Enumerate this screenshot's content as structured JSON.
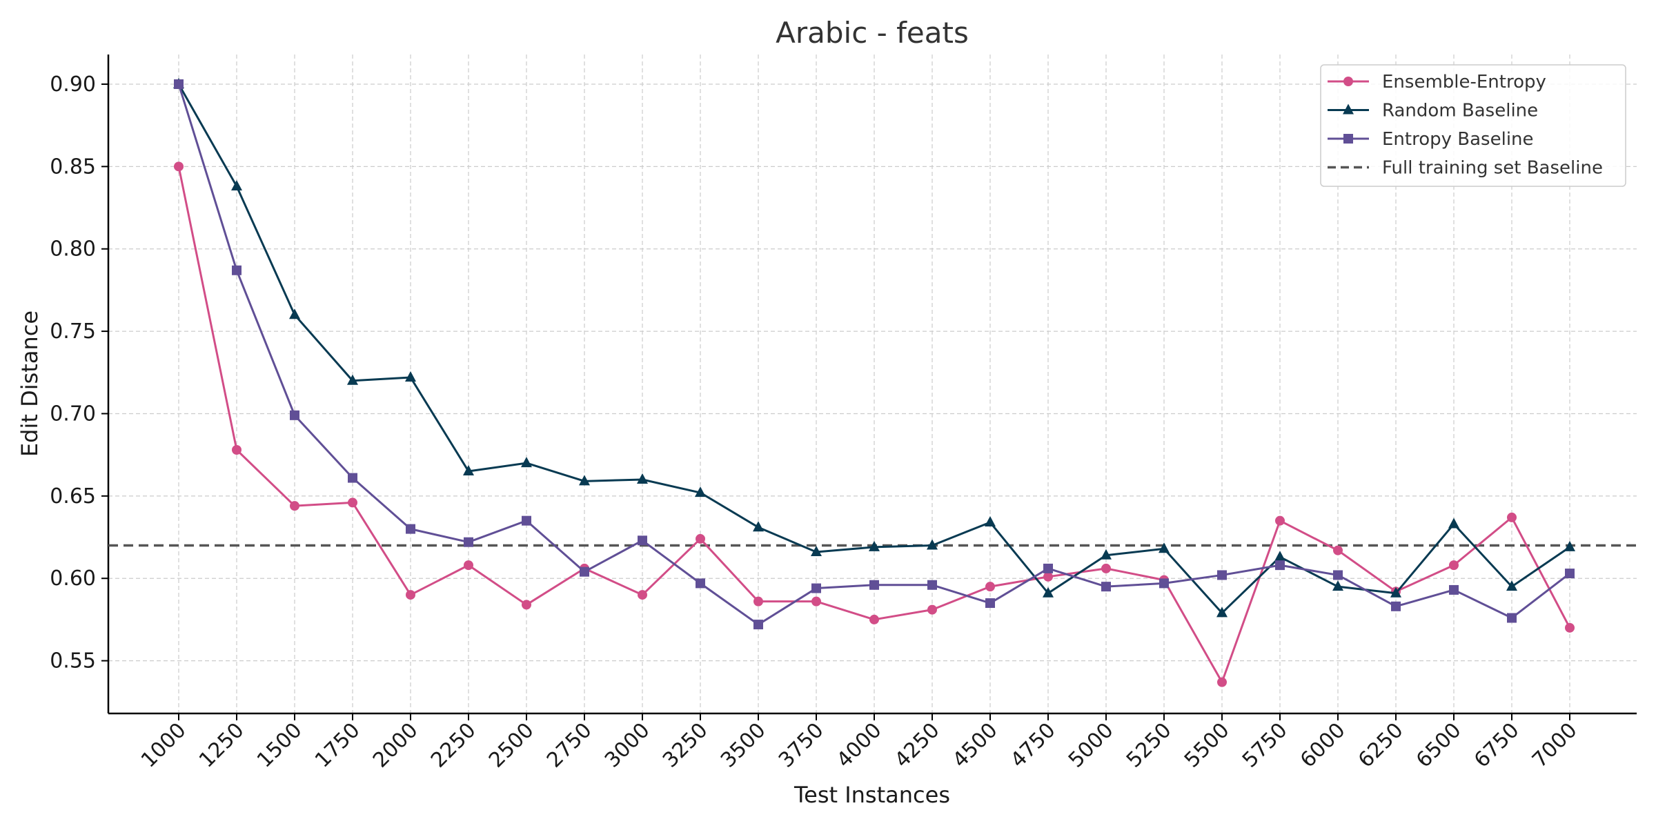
{
  "chart_data": {
    "type": "line",
    "title": "Arabic - feats",
    "xlabel": "Test Instances",
    "ylabel": "Edit Distance",
    "ylim": [
      0.518,
      0.918
    ],
    "y_ticks": [
      "0.55",
      "0.60",
      "0.65",
      "0.70",
      "0.75",
      "0.80",
      "0.85",
      "0.90"
    ],
    "y_tick_values": [
      0.55,
      0.6,
      0.65,
      0.7,
      0.75,
      0.8,
      0.85,
      0.9
    ],
    "x": [
      1000,
      1250,
      1500,
      1750,
      2000,
      2250,
      2500,
      2750,
      3000,
      3250,
      3500,
      3750,
      4000,
      4250,
      4500,
      4750,
      5000,
      5250,
      5500,
      5750,
      6000,
      6250,
      6500,
      6750,
      7000
    ],
    "x_tick_labels": [
      "1000",
      "1250",
      "1500",
      "1750",
      "2000",
      "2250",
      "2500",
      "2750",
      "3000",
      "3250",
      "3500",
      "3750",
      "4000",
      "4250",
      "4500",
      "4750",
      "5000",
      "5250",
      "5500",
      "5750",
      "6000",
      "6250",
      "6500",
      "6750",
      "7000"
    ],
    "grid": true,
    "legend_position": "top-right",
    "series": [
      {
        "name": "Ensemble-Entropy",
        "color": "#d24d87",
        "marker": "circle",
        "values": [
          0.85,
          0.678,
          0.644,
          0.646,
          0.59,
          0.608,
          0.584,
          0.606,
          0.59,
          0.624,
          0.586,
          0.586,
          0.575,
          0.581,
          0.595,
          0.601,
          0.606,
          0.599,
          0.537,
          0.635,
          0.617,
          0.592,
          0.608,
          0.637,
          0.57
        ]
      },
      {
        "name": "Random Baseline",
        "color": "#083a52",
        "marker": "triangle",
        "values": [
          0.9,
          0.838,
          0.76,
          0.72,
          0.722,
          0.665,
          0.67,
          0.659,
          0.66,
          0.652,
          0.631,
          0.616,
          0.619,
          0.62,
          0.634,
          0.591,
          0.614,
          0.618,
          0.579,
          0.613,
          0.595,
          0.591,
          0.633,
          0.595,
          0.619
        ]
      },
      {
        "name": "Entropy Baseline",
        "color": "#604f96",
        "marker": "square",
        "values": [
          0.9,
          0.787,
          0.699,
          0.661,
          0.63,
          0.622,
          0.635,
          0.604,
          0.623,
          0.597,
          0.572,
          0.594,
          0.596,
          0.596,
          0.585,
          0.606,
          0.595,
          0.597,
          0.602,
          0.608,
          0.602,
          0.583,
          0.593,
          0.576,
          0.603
        ]
      }
    ],
    "reference_lines": [
      {
        "name": "Full training set Baseline",
        "value": 0.62,
        "color": "#555555",
        "style": "dashed"
      }
    ]
  }
}
